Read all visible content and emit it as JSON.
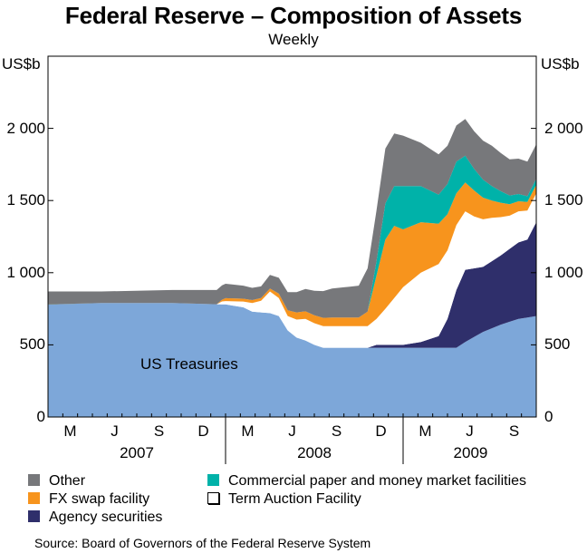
{
  "header": {
    "title": "Federal Reserve – Composition of Assets",
    "subtitle": "Weekly"
  },
  "axis": {
    "unit_left": "US$b",
    "unit_right": "US$b"
  },
  "chart_data": {
    "type": "area",
    "stacked": true,
    "title": "Federal Reserve – Composition of Assets",
    "subtitle": "Weekly",
    "ylabel": "US$b",
    "ylim": [
      0,
      2500
    ],
    "yticks": [
      0,
      500,
      1000,
      1500,
      2000
    ],
    "ytick_labels": [
      "0",
      "500",
      "1 000",
      "1 500",
      "2 000"
    ],
    "xlim": [
      2007.0,
      2009.75
    ],
    "xticks": [
      {
        "label": "M",
        "t": 2007.125
      },
      {
        "label": "J",
        "t": 2007.375
      },
      {
        "label": "S",
        "t": 2007.625
      },
      {
        "label": "D",
        "t": 2007.875
      },
      {
        "label": "M",
        "t": 2008.125
      },
      {
        "label": "J",
        "t": 2008.375
      },
      {
        "label": "S",
        "t": 2008.625
      },
      {
        "label": "D",
        "t": 2008.875
      },
      {
        "label": "M",
        "t": 2009.125
      },
      {
        "label": "J",
        "t": 2009.375
      },
      {
        "label": "S",
        "t": 2009.625
      }
    ],
    "years": [
      {
        "label": "2007",
        "t": 2007.5
      },
      {
        "label": "2008",
        "t": 2008.5
      },
      {
        "label": "2009",
        "t": 2009.38
      }
    ],
    "inline_label": "US Treasuries",
    "series": [
      {
        "name": "US Treasuries",
        "color": "#7da7d9",
        "points": [
          [
            2007.0,
            780
          ],
          [
            2007.3,
            790
          ],
          [
            2007.7,
            790
          ],
          [
            2008.0,
            780
          ],
          [
            2008.1,
            760
          ],
          [
            2008.15,
            730
          ],
          [
            2008.25,
            720
          ],
          [
            2008.3,
            700
          ],
          [
            2008.35,
            600
          ],
          [
            2008.4,
            550
          ],
          [
            2008.45,
            530
          ],
          [
            2008.5,
            500
          ],
          [
            2008.55,
            480
          ],
          [
            2008.8,
            480
          ],
          [
            2009.0,
            480
          ],
          [
            2009.2,
            480
          ],
          [
            2009.3,
            480
          ],
          [
            2009.35,
            520
          ],
          [
            2009.45,
            590
          ],
          [
            2009.55,
            640
          ],
          [
            2009.65,
            680
          ],
          [
            2009.75,
            700
          ]
        ]
      },
      {
        "name": "Agency securities",
        "color": "#2f2f6b",
        "points": [
          [
            2007.0,
            0
          ],
          [
            2008.8,
            0
          ],
          [
            2008.85,
            20
          ],
          [
            2009.0,
            20
          ],
          [
            2009.1,
            40
          ],
          [
            2009.2,
            80
          ],
          [
            2009.25,
            200
          ],
          [
            2009.3,
            400
          ],
          [
            2009.35,
            500
          ],
          [
            2009.45,
            450
          ],
          [
            2009.55,
            480
          ],
          [
            2009.65,
            530
          ],
          [
            2009.7,
            540
          ],
          [
            2009.75,
            650
          ]
        ]
      },
      {
        "name": "Term Auction Facility",
        "color": "#ffffff",
        "points": [
          [
            2007.0,
            0
          ],
          [
            2007.95,
            0
          ],
          [
            2007.98,
            20
          ],
          [
            2008.1,
            40
          ],
          [
            2008.2,
            80
          ],
          [
            2008.25,
            150
          ],
          [
            2008.35,
            100
          ],
          [
            2008.45,
            150
          ],
          [
            2008.55,
            150
          ],
          [
            2008.7,
            150
          ],
          [
            2008.8,
            150
          ],
          [
            2008.85,
            180
          ],
          [
            2008.9,
            250
          ],
          [
            2009.0,
            400
          ],
          [
            2009.1,
            480
          ],
          [
            2009.2,
            500
          ],
          [
            2009.3,
            450
          ],
          [
            2009.4,
            360
          ],
          [
            2009.5,
            300
          ],
          [
            2009.6,
            230
          ],
          [
            2009.7,
            200
          ],
          [
            2009.75,
            200
          ]
        ]
      },
      {
        "name": "FX swap facility",
        "color": "#f7941d",
        "points": [
          [
            2007.0,
            0
          ],
          [
            2007.95,
            0
          ],
          [
            2008.0,
            20
          ],
          [
            2008.25,
            20
          ],
          [
            2008.3,
            30
          ],
          [
            2008.4,
            50
          ],
          [
            2008.6,
            60
          ],
          [
            2008.75,
            60
          ],
          [
            2008.8,
            100
          ],
          [
            2008.85,
            300
          ],
          [
            2008.9,
            480
          ],
          [
            2008.95,
            500
          ],
          [
            2009.0,
            400
          ],
          [
            2009.1,
            350
          ],
          [
            2009.2,
            280
          ],
          [
            2009.3,
            220
          ],
          [
            2009.4,
            180
          ],
          [
            2009.5,
            120
          ],
          [
            2009.6,
            80
          ],
          [
            2009.7,
            60
          ],
          [
            2009.75,
            60
          ]
        ]
      },
      {
        "name": "Commercial paper and money market facilities",
        "color": "#00b2a9",
        "points": [
          [
            2007.0,
            0
          ],
          [
            2008.8,
            0
          ],
          [
            2008.85,
            100
          ],
          [
            2008.9,
            250
          ],
          [
            2009.0,
            300
          ],
          [
            2009.1,
            250
          ],
          [
            2009.2,
            200
          ],
          [
            2009.3,
            220
          ],
          [
            2009.4,
            150
          ],
          [
            2009.5,
            100
          ],
          [
            2009.6,
            60
          ],
          [
            2009.7,
            40
          ],
          [
            2009.75,
            40
          ]
        ]
      },
      {
        "name": "Other",
        "color": "#77787b",
        "points": [
          [
            2007.0,
            90
          ],
          [
            2007.3,
            80
          ],
          [
            2007.7,
            90
          ],
          [
            2008.0,
            100
          ],
          [
            2008.2,
            80
          ],
          [
            2008.4,
            140
          ],
          [
            2008.6,
            200
          ],
          [
            2008.75,
            220
          ],
          [
            2008.8,
            300
          ],
          [
            2008.85,
            350
          ],
          [
            2008.9,
            380
          ],
          [
            2009.0,
            350
          ],
          [
            2009.1,
            300
          ],
          [
            2009.2,
            280
          ],
          [
            2009.3,
            250
          ],
          [
            2009.4,
            260
          ],
          [
            2009.5,
            280
          ],
          [
            2009.6,
            250
          ],
          [
            2009.7,
            240
          ],
          [
            2009.75,
            240
          ]
        ]
      }
    ]
  },
  "legend": {
    "items": [
      {
        "label": "Other",
        "color": "#77787b"
      },
      {
        "label": "FX swap facility",
        "color": "#f7941d"
      },
      {
        "label": "Agency securities",
        "color": "#2f2f6b"
      },
      {
        "label": "Commercial paper and money market facilities",
        "color": "#00b2a9"
      },
      {
        "label": "Term Auction Facility",
        "color": "#ffffff"
      }
    ]
  },
  "source": "Source: Board of Governors of the Federal Reserve System"
}
